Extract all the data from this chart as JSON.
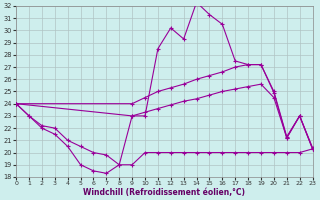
{
  "xlabel": "Windchill (Refroidissement éolien,°C)",
  "background_color": "#ceeeed",
  "grid_color": "#b0c4c4",
  "line_color": "#990099",
  "xlim": [
    0,
    23
  ],
  "ylim": [
    18,
    32
  ],
  "xticks": [
    0,
    1,
    2,
    3,
    4,
    5,
    6,
    7,
    8,
    9,
    10,
    11,
    12,
    13,
    14,
    15,
    16,
    17,
    18,
    19,
    20,
    21,
    22,
    23
  ],
  "yticks": [
    18,
    19,
    20,
    21,
    22,
    23,
    24,
    25,
    26,
    27,
    28,
    29,
    30,
    31,
    32
  ],
  "line1_x": [
    0,
    1,
    2,
    3,
    4,
    5,
    6,
    7,
    8,
    9,
    10,
    11,
    12,
    13,
    14,
    15,
    16,
    17,
    18,
    19,
    20,
    21,
    22,
    23
  ],
  "line1_y": [
    24.0,
    23.0,
    22.0,
    21.5,
    20.5,
    19.0,
    18.5,
    18.3,
    19.0,
    23.0,
    23.0,
    28.5,
    30.2,
    29.3,
    32.3,
    31.3,
    30.5,
    27.5,
    27.2,
    27.2,
    25.0,
    21.3,
    23.0,
    20.4
  ],
  "line2_x": [
    0,
    9,
    10,
    11,
    12,
    13,
    14,
    15,
    16,
    17,
    18,
    19,
    20,
    21,
    22,
    23
  ],
  "line2_y": [
    24.0,
    24.0,
    24.5,
    25.0,
    25.3,
    25.6,
    26.0,
    26.3,
    26.6,
    27.0,
    27.2,
    27.2,
    24.9,
    21.2,
    23.0,
    20.3
  ],
  "line3_x": [
    0,
    9,
    10,
    11,
    12,
    13,
    14,
    15,
    16,
    17,
    18,
    19,
    20,
    21,
    22,
    23
  ],
  "line3_y": [
    24.0,
    23.0,
    23.3,
    23.6,
    23.9,
    24.2,
    24.4,
    24.7,
    25.0,
    25.2,
    25.4,
    25.6,
    24.5,
    21.2,
    23.0,
    20.3
  ],
  "line4_x": [
    0,
    1,
    2,
    3,
    4,
    5,
    6,
    7,
    8,
    9,
    10,
    11,
    12,
    13,
    14,
    15,
    16,
    17,
    18,
    19,
    20,
    21,
    22,
    23
  ],
  "line4_y": [
    24.0,
    23.0,
    22.2,
    22.0,
    21.0,
    20.5,
    20.0,
    19.8,
    19.0,
    19.0,
    20.0,
    20.0,
    20.0,
    20.0,
    20.0,
    20.0,
    20.0,
    20.0,
    20.0,
    20.0,
    20.0,
    20.0,
    20.0,
    20.3
  ]
}
